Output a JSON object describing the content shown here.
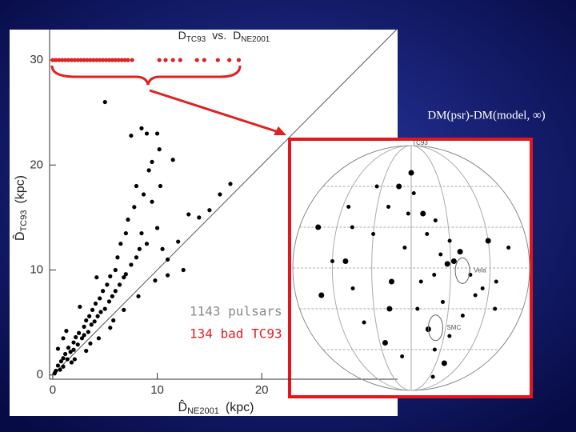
{
  "chart_data": [
    {
      "type": "scatter",
      "title": {
        "d1": "D",
        "sub1": "TC93",
        "vs": "vs.",
        "d2": "D",
        "sub2": "NE2001"
      },
      "x_label": {
        "symbol": "D̂",
        "sub": "NE2001",
        "unit": "(kpc)"
      },
      "y_label": {
        "symbol": "D̂",
        "sub": "TC93",
        "unit": "(kpc)"
      },
      "xlim": [
        -0.3,
        33
      ],
      "ylim": [
        -0.4,
        32.9
      ],
      "xticks": [
        0,
        10,
        20
      ],
      "yticks": [
        0,
        10,
        20,
        30
      ],
      "diagonal": true,
      "series": [
        {
          "name": "1143 pulsars",
          "color": "#000000",
          "label_color": "#8a8a8a",
          "x": [
            0.3,
            0.5,
            0.7,
            0.8,
            1,
            1,
            1.2,
            1.4,
            1.5,
            1.7,
            2,
            2,
            2.2,
            2.4,
            2.5,
            2.8,
            3,
            3,
            3.2,
            3.4,
            3.5,
            3.7,
            3.8,
            4,
            4.1,
            4.3,
            4.5,
            4.6,
            4.8,
            5,
            5,
            5.2,
            5.4,
            5.5,
            5.7,
            6,
            6,
            6.2,
            6.4,
            6.5,
            6.8,
            7,
            7,
            7.2,
            7.5,
            7.8,
            8,
            8,
            8.3,
            8.5,
            8.5,
            8.7,
            9,
            9,
            9.2,
            9.5,
            9.5,
            10,
            10,
            10.3,
            10.5,
            11,
            11.5,
            11,
            12,
            13,
            14,
            15,
            16,
            17,
            10.2,
            8.2,
            6.8,
            4.4,
            3.2,
            2.1,
            0.5,
            1,
            5.5,
            9.8,
            12.5,
            7.5,
            1.3,
            0.2,
            1.8,
            3.6,
            5.8,
            4.2,
            2.6
          ],
          "y": [
            0.4,
            0.9,
            0.5,
            1.3,
            1.6,
            0.8,
            2,
            1.5,
            2.6,
            2.2,
            3.1,
            2.4,
            3.6,
            2.9,
            4,
            3.5,
            4.6,
            3.8,
            5.2,
            4.1,
            5.6,
            4.8,
            6.2,
            5.1,
            6.8,
            5.6,
            7.3,
            6,
            8,
            6.3,
            26,
            8.6,
            7,
            9.4,
            7.5,
            10,
            8,
            11.2,
            8.6,
            12.5,
            9.3,
            13.5,
            9.6,
            14.8,
            10.5,
            16,
            11.2,
            18,
            12,
            23.5,
            13.5,
            17.2,
            23,
            12.5,
            19.5,
            20.3,
            16.5,
            23,
            14,
            18,
            12,
            11,
            20.5,
            9.5,
            12.7,
            15.3,
            15,
            15.7,
            17.2,
            18.2,
            21.5,
            7.5,
            6.2,
            3.5,
            2.3,
            1.5,
            2.5,
            3.5,
            4.5,
            9,
            10,
            22.8,
            4.2,
            0.2,
            1.2,
            3,
            5.2,
            9.3,
            6.5
          ]
        },
        {
          "name": "134 bad TC93",
          "color": "#e02020",
          "label_color": "#e02020",
          "x": [
            0,
            0.3,
            0.6,
            0.9,
            1.2,
            1.5,
            1.8,
            2.1,
            2.4,
            2.7,
            3,
            3.3,
            3.6,
            3.9,
            4.2,
            4.5,
            4.8,
            5.1,
            5.4,
            5.7,
            6,
            6.3,
            6.6,
            6.9,
            7.2,
            7.6,
            10.2,
            10.8,
            11.5,
            12.2,
            13.8,
            14.5,
            15.8,
            16.9,
            17.8
          ],
          "y": [
            30,
            30,
            30,
            30,
            30,
            30,
            30,
            30,
            30,
            30,
            30,
            30,
            30,
            30,
            30,
            30,
            30,
            30,
            30,
            30,
            30,
            30,
            30,
            30,
            30,
            30,
            30,
            30,
            30,
            30,
            30,
            30,
            30,
            30,
            30
          ]
        }
      ]
    },
    {
      "type": "sky_map",
      "title": "DM(psr)-DM(model, ∞)",
      "top_label": "TC93",
      "xlim": [
        -180,
        180
      ],
      "ylim": [
        -90,
        90
      ],
      "labels": [
        {
          "text": "Vela",
          "x": 95,
          "y": -2
        },
        {
          "text": "SMC",
          "x": 62,
          "y": -44
        }
      ],
      "series": [
        {
          "color": "#000000",
          "x": [
            -100,
            -95,
            -60,
            -30,
            -10,
            5,
            20,
            40,
            60,
            75,
            90,
            110,
            120,
            135,
            150,
            -140,
            -120,
            -80,
            -50,
            -20,
            10,
            30,
            50,
            70,
            80,
            -70,
            -40,
            0,
            25,
            45,
            65,
            100,
            130,
            -150,
            -110,
            -90,
            -35,
            15,
            35,
            55,
            85,
            -5,
            -25,
            48,
            72
          ],
          "y": [
            5,
            30,
            25,
            -10,
            15,
            55,
            40,
            35,
            20,
            12,
            -5,
            -15,
            20,
            -30,
            15,
            -20,
            5,
            -40,
            -55,
            -65,
            -30,
            -45,
            -25,
            -50,
            -70,
            60,
            45,
            70,
            25,
            10,
            5,
            -20,
            -10,
            30,
            45,
            -15,
            -30,
            -10,
            -5,
            3,
            -35,
            40,
            60,
            -60,
            -80
          ]
        }
      ]
    }
  ]
}
